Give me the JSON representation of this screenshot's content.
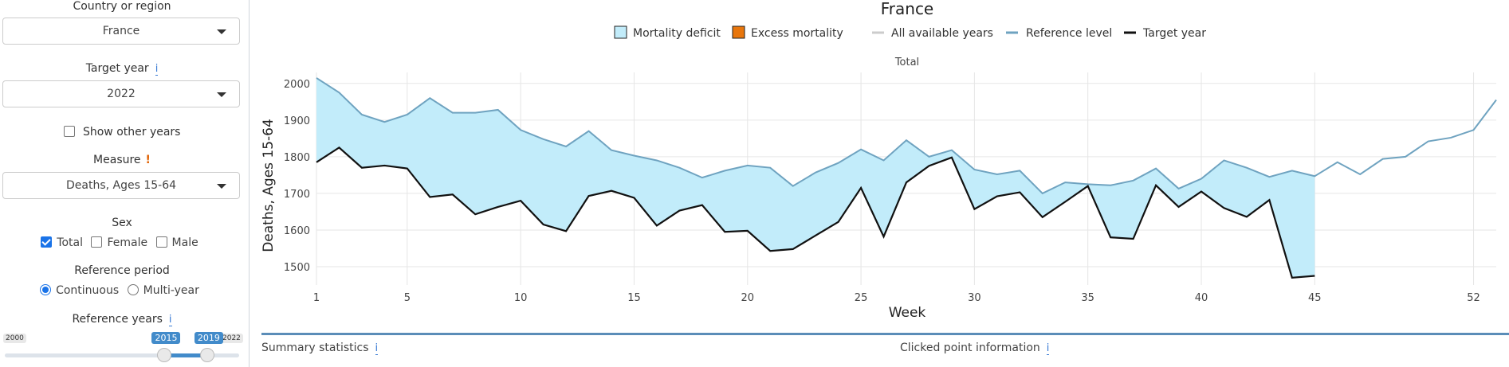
{
  "sidebar": {
    "country_label": "Country or region",
    "country_value": "France",
    "target_year_label": "Target year",
    "target_year_value": "2022",
    "show_other_years": "Show other years",
    "measure_label": "Measure",
    "measure_warn": "!",
    "measure_value": "Deaths, Ages 15-64",
    "sex_label": "Sex",
    "sex_options": [
      "Total",
      "Female",
      "Male"
    ],
    "ref_period_label": "Reference period",
    "ref_period_options": [
      "Continuous",
      "Multi-year"
    ],
    "ref_years_label": "Reference years",
    "slider": {
      "min_label": "2000",
      "max_label": "2022",
      "from_label": "2015",
      "to_label": "2019",
      "min": 2000,
      "max": 2022,
      "from": 2015,
      "to": 2019
    },
    "info_glyph": "i"
  },
  "legend": {
    "mortality_deficit": "Mortality deficit",
    "excess_mortality": "Excess mortality",
    "all_years": "All available years",
    "reference_level": "Reference level",
    "target_year": "Target year"
  },
  "colors": {
    "deficit_fill": "#c2ecfa",
    "excess_fill": "#e8760c",
    "reference": "#6fa3c0",
    "target": "#111111",
    "all_years": "#cccccc"
  },
  "bottom": {
    "summary": "Summary statistics",
    "clicked": "Clicked point information"
  },
  "chart_data": {
    "type": "line",
    "title": "France",
    "subtitle": "Total",
    "xlabel": "Week",
    "ylabel": "Deaths, Ages 15-64",
    "xlim": [
      1,
      53
    ],
    "ylim": [
      1450,
      2030
    ],
    "xticks": [
      1,
      5,
      10,
      15,
      20,
      25,
      30,
      35,
      40,
      45,
      52
    ],
    "yticks": [
      1500,
      1600,
      1700,
      1800,
      1900,
      2000
    ],
    "grid": true,
    "legend_placement": "top",
    "series": [
      {
        "name": "Reference level",
        "x": [
          1,
          2,
          3,
          4,
          5,
          6,
          7,
          8,
          9,
          10,
          11,
          12,
          13,
          14,
          15,
          16,
          17,
          18,
          19,
          20,
          21,
          22,
          23,
          24,
          25,
          26,
          27,
          28,
          29,
          30,
          31,
          32,
          33,
          34,
          35,
          36,
          37,
          38,
          39,
          40,
          41,
          42,
          43,
          44,
          45,
          46,
          47,
          48,
          49,
          50,
          51,
          52,
          53
        ],
        "values": [
          2015,
          1975,
          1915,
          1895,
          1915,
          1960,
          1920,
          1920,
          1928,
          1873,
          1848,
          1828,
          1870,
          1818,
          1803,
          1790,
          1770,
          1743,
          1762,
          1776,
          1770,
          1720,
          1757,
          1783,
          1820,
          1790,
          1845,
          1800,
          1818,
          1765,
          1752,
          1762,
          1700,
          1730,
          1725,
          1722,
          1735,
          1768,
          1713,
          1740,
          1790,
          1770,
          1745,
          1762,
          1747,
          1785,
          1752,
          1794,
          1800,
          1842,
          1852,
          1873,
          1955
        ]
      },
      {
        "name": "Target year",
        "x": [
          1,
          2,
          3,
          4,
          5,
          6,
          7,
          8,
          9,
          10,
          11,
          12,
          13,
          14,
          15,
          16,
          17,
          18,
          19,
          20,
          21,
          22,
          23,
          24,
          25,
          26,
          27,
          28,
          29,
          30,
          31,
          32,
          33,
          34,
          35,
          36,
          37,
          38,
          39,
          40,
          41,
          42,
          43,
          44,
          45
        ],
        "values": [
          1785,
          1825,
          1770,
          1776,
          1768,
          1690,
          1697,
          1643,
          1663,
          1680,
          1615,
          1597,
          1693,
          1707,
          1688,
          1612,
          1653,
          1668,
          1595,
          1598,
          1543,
          1548,
          1585,
          1622,
          1715,
          1582,
          1730,
          1775,
          1798,
          1657,
          1692,
          1703,
          1635,
          1677,
          1720,
          1580,
          1576,
          1722,
          1663,
          1705,
          1660,
          1636,
          1682,
          1470,
          1475
        ]
      }
    ]
  }
}
